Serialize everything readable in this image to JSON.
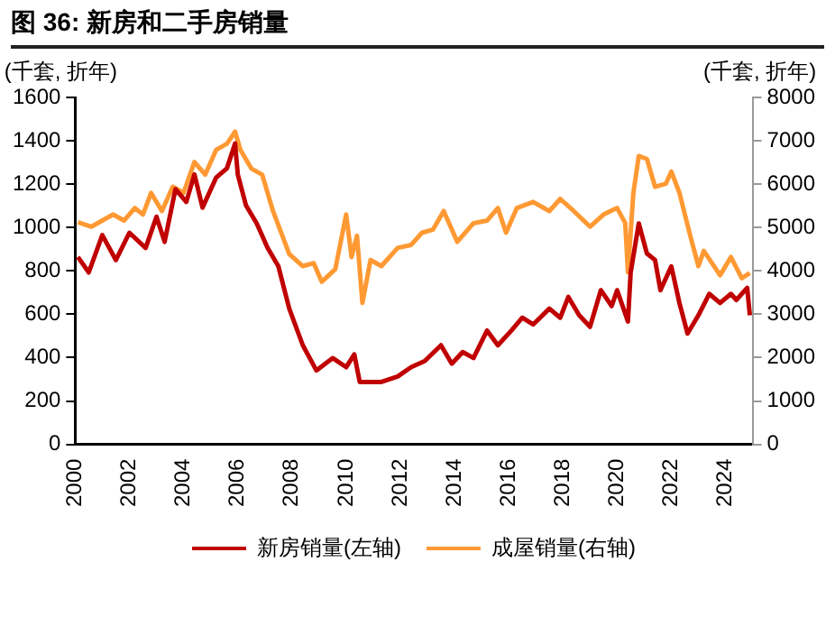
{
  "chart_data": {
    "type": "line",
    "title": "图 36: 新房和二手房销量",
    "ylabel": "(千套, 折年)",
    "y2label": "(千套, 折年)",
    "xlim": [
      2000,
      2025
    ],
    "xticks": [
      2000,
      2002,
      2004,
      2006,
      2008,
      2010,
      2012,
      2014,
      2016,
      2018,
      2020,
      2022,
      2024
    ],
    "ylim": [
      0,
      1600
    ],
    "yticks": [
      0,
      200,
      400,
      600,
      800,
      1000,
      1200,
      1400,
      1600
    ],
    "y2lim": [
      0,
      8000
    ],
    "y2ticks": [
      0,
      1000,
      2000,
      3000,
      4000,
      5000,
      6000,
      7000,
      8000
    ],
    "grid": false,
    "legend": "bottom",
    "marker": "none",
    "line_style": "solid",
    "series": [
      {
        "name": "新房销量(左轴)",
        "color": "#c00000",
        "x": [
          2000.1,
          2000.5,
          2001.0,
          2001.5,
          2002.0,
          2002.6,
          2003.0,
          2003.3,
          2003.7,
          2004.1,
          2004.4,
          2004.7,
          2005.2,
          2005.6,
          2005.9,
          2006.0,
          2006.3,
          2006.7,
          2007.1,
          2007.5,
          2007.9,
          2008.4,
          2008.9,
          2009.5,
          2010.0,
          2010.3,
          2010.5,
          2011.3,
          2011.9,
          2012.4,
          2012.9,
          2013.5,
          2013.9,
          2014.3,
          2014.7,
          2015.2,
          2015.6,
          2016.1,
          2016.5,
          2016.9,
          2017.5,
          2017.9,
          2018.2,
          2018.6,
          2019.0,
          2019.4,
          2019.8,
          2020.0,
          2020.4,
          2020.5,
          2020.8,
          2021.1,
          2021.4,
          2021.6,
          2022.0,
          2022.3,
          2022.6,
          2023.0,
          2023.4,
          2023.8,
          2024.2,
          2024.4,
          2024.8,
          2024.9
        ],
        "values": [
          864,
          793,
          965,
          850,
          976,
          906,
          1050,
          934,
          1177,
          1118,
          1245,
          1092,
          1230,
          1273,
          1388,
          1245,
          1103,
          1019,
          906,
          821,
          626,
          457,
          341,
          398,
          356,
          415,
          288,
          288,
          313,
          356,
          384,
          457,
          372,
          426,
          398,
          525,
          457,
          525,
          584,
          553,
          626,
          584,
          680,
          595,
          542,
          711,
          638,
          711,
          567,
          793,
          1019,
          880,
          850,
          711,
          821,
          652,
          511,
          595,
          694,
          652,
          694,
          666,
          722,
          595
        ]
      },
      {
        "name": "成屋销量(右轴)",
        "color": "#ff9933",
        "axis": "y2",
        "x": [
          2000.1,
          2000.6,
          2001.4,
          2001.8,
          2002.2,
          2002.5,
          2002.8,
          2003.2,
          2003.6,
          2004.0,
          2004.4,
          2004.8,
          2005.2,
          2005.6,
          2005.9,
          2006.1,
          2006.5,
          2006.9,
          2007.3,
          2007.9,
          2008.4,
          2008.8,
          2009.1,
          2009.6,
          2010.0,
          2010.2,
          2010.4,
          2010.6,
          2010.9,
          2011.3,
          2011.9,
          2012.4,
          2012.8,
          2013.2,
          2013.6,
          2014.1,
          2014.7,
          2015.2,
          2015.6,
          2015.9,
          2016.3,
          2016.9,
          2017.5,
          2017.9,
          2018.4,
          2019.0,
          2019.5,
          2020.0,
          2020.3,
          2020.4,
          2020.6,
          2020.8,
          2021.1,
          2021.4,
          2021.8,
          2022.0,
          2022.3,
          2022.7,
          2023.0,
          2023.2,
          2023.8,
          2024.2,
          2024.6,
          2024.9
        ],
        "values": [
          5120,
          5020,
          5300,
          5160,
          5450,
          5300,
          5800,
          5380,
          5940,
          5800,
          6510,
          6220,
          6790,
          6930,
          7210,
          6790,
          6360,
          6220,
          5380,
          4390,
          4110,
          4180,
          3750,
          4040,
          5300,
          4320,
          4810,
          3260,
          4250,
          4110,
          4530,
          4600,
          4880,
          4950,
          5380,
          4670,
          5100,
          5160,
          5450,
          4880,
          5450,
          5590,
          5380,
          5660,
          5380,
          5020,
          5300,
          5450,
          5100,
          3970,
          5800,
          6650,
          6580,
          5940,
          6010,
          6290,
          5800,
          4810,
          4110,
          4460,
          3900,
          4320,
          3830,
          3950
        ]
      }
    ]
  }
}
